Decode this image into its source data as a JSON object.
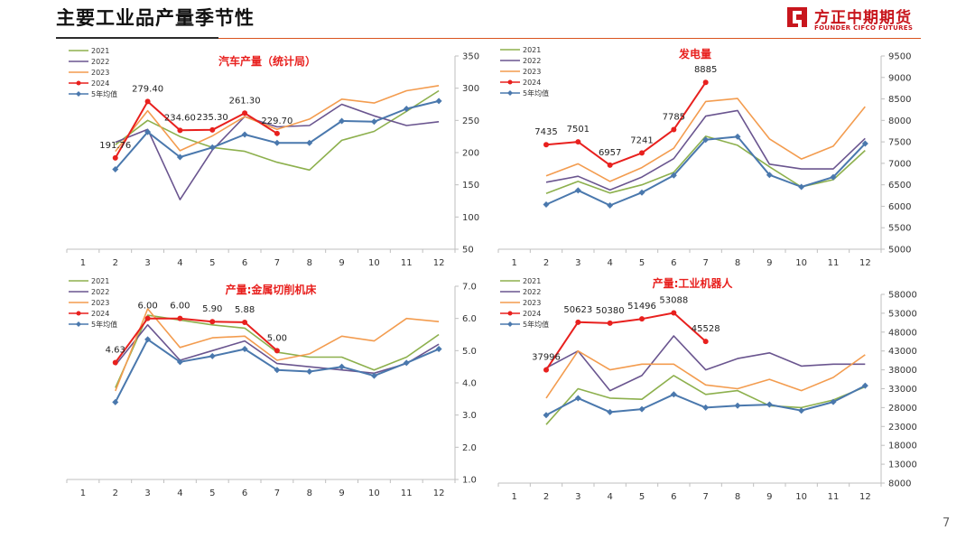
{
  "page": {
    "title": "主要工业品产量季节性",
    "page_number": "7",
    "logo": {
      "name_cn": "方正中期期货",
      "name_en": "FOUNDER CIFCO FUTURES"
    }
  },
  "colors": {
    "2021": "#8db04d",
    "2022": "#6a558f",
    "2023": "#f39c4f",
    "2024": "#e8201e",
    "5年均值": "#4a78ad",
    "title_red": "#e8201e",
    "brand_red": "#c8161d"
  },
  "chart_data": [
    {
      "type": "line",
      "title": "汽车产量（统计局）",
      "categories": [
        "1",
        "2",
        "3",
        "4",
        "5",
        "6",
        "7",
        "8",
        "9",
        "10",
        "11",
        "12"
      ],
      "ylim": [
        50,
        350
      ],
      "yticks": [
        "50",
        "100",
        "150",
        "200",
        "250",
        "300",
        "350"
      ],
      "y_axis_side": "right",
      "legend_position": "top-left",
      "series": [
        {
          "name": "2021",
          "values": [
            null,
            212,
            250,
            225,
            208,
            202,
            185,
            173,
            219,
            233,
            264,
            296
          ]
        },
        {
          "name": "2022",
          "values": [
            null,
            216,
            236,
            127,
            204,
            256,
            240,
            242,
            275,
            257,
            242,
            248
          ]
        },
        {
          "name": "2023",
          "values": [
            null,
            202,
            265,
            203,
            226,
            256,
            236,
            252,
            283,
            277,
            296,
            304
          ]
        },
        {
          "name": "2024",
          "values": [
            null,
            191.76,
            279.4,
            234.6,
            235.3,
            261.3,
            229.7,
            null,
            null,
            null,
            null,
            null
          ],
          "labels": [
            "",
            "191.76",
            "279.40",
            "234.60",
            "235.30",
            "261.30",
            "229.70",
            "",
            "",
            "",
            "",
            ""
          ]
        },
        {
          "name": "5年均值",
          "values": [
            null,
            174,
            232,
            193,
            208,
            228,
            215,
            215,
            249,
            248,
            268,
            280
          ]
        }
      ]
    },
    {
      "type": "line",
      "title": "发电量",
      "categories": [
        "1",
        "2",
        "3",
        "4",
        "5",
        "6",
        "7",
        "8",
        "9",
        "10",
        "11",
        "12"
      ],
      "ylim": [
        5000,
        9500
      ],
      "yticks": [
        "5000",
        "5500",
        "6000",
        "6500",
        "7000",
        "7500",
        "8000",
        "8500",
        "9000",
        "9500"
      ],
      "y_axis_side": "right",
      "legend_position": "top-left",
      "series": [
        {
          "name": "2021",
          "values": [
            null,
            6300,
            6580,
            6310,
            6500,
            6790,
            7630,
            7420,
            6920,
            6450,
            6620,
            7300
          ]
        },
        {
          "name": "2022",
          "values": [
            null,
            6560,
            6700,
            6380,
            6680,
            7110,
            8100,
            8230,
            6980,
            6870,
            6870,
            7580
          ]
        },
        {
          "name": "2023",
          "values": [
            null,
            6710,
            6990,
            6580,
            6900,
            7350,
            8440,
            8510,
            7570,
            7100,
            7400,
            8320
          ]
        },
        {
          "name": "2024",
          "values": [
            null,
            7435,
            7501,
            6957,
            7241,
            7785,
            8885,
            null,
            null,
            null,
            null,
            null
          ],
          "labels": [
            "",
            "7435",
            "7501",
            "6957",
            "7241",
            "7785",
            "8885",
            "",
            "",
            "",
            "",
            ""
          ]
        },
        {
          "name": "5年均值",
          "values": [
            null,
            6040,
            6370,
            6020,
            6320,
            6720,
            7550,
            7620,
            6730,
            6450,
            6680,
            7460
          ]
        }
      ]
    },
    {
      "type": "line",
      "title": "产量:金属切削机床",
      "categories": [
        "1",
        "2",
        "3",
        "4",
        "5",
        "6",
        "7",
        "8",
        "9",
        "10",
        "11",
        "12"
      ],
      "ylim": [
        1.0,
        7.0
      ],
      "yticks": [
        "1.0",
        "2.0",
        "3.0",
        "4.0",
        "5.0",
        "6.0",
        "7.0"
      ],
      "y_axis_side": "right",
      "legend_position": "top-left",
      "series": [
        {
          "name": "2021",
          "values": [
            null,
            3.85,
            6.1,
            5.95,
            5.8,
            5.7,
            4.95,
            4.8,
            4.8,
            4.4,
            4.8,
            5.5
          ]
        },
        {
          "name": "2022",
          "values": [
            null,
            4.55,
            5.8,
            4.7,
            5.0,
            5.3,
            4.6,
            4.5,
            4.4,
            4.3,
            4.6,
            5.2
          ]
        },
        {
          "name": "2023",
          "values": [
            null,
            3.75,
            6.3,
            5.1,
            5.4,
            5.45,
            4.7,
            4.9,
            5.45,
            5.3,
            6.0,
            5.9
          ]
        },
        {
          "name": "2024",
          "values": [
            null,
            4.63,
            6.0,
            6.0,
            5.9,
            5.88,
            5.0,
            null,
            null,
            null,
            null,
            null
          ],
          "labels": [
            "",
            "4.63",
            "6.00",
            "6.00",
            "5.90",
            "5.88",
            "5.00",
            "",
            "",
            "",
            "",
            ""
          ]
        },
        {
          "name": "5年均值",
          "values": [
            null,
            3.4,
            5.35,
            4.65,
            4.83,
            5.05,
            4.4,
            4.35,
            4.5,
            4.22,
            4.62,
            5.05
          ]
        }
      ]
    },
    {
      "type": "line",
      "title": "产量:工业机器人",
      "categories": [
        "1",
        "2",
        "3",
        "4",
        "5",
        "6",
        "7",
        "8",
        "9",
        "10",
        "11",
        "12"
      ],
      "ylim": [
        8000,
        58000
      ],
      "yticks": [
        "8000",
        "13000",
        "18000",
        "23000",
        "28000",
        "33000",
        "38000",
        "43000",
        "48000",
        "53000",
        "58000"
      ],
      "y_axis_side": "right",
      "legend_position": "top-left",
      "series": [
        {
          "name": "2021",
          "values": [
            null,
            23500,
            33000,
            30500,
            30200,
            36500,
            31500,
            32500,
            28500,
            28000,
            30000,
            33500
          ]
        },
        {
          "name": "2022",
          "values": [
            null,
            38500,
            43000,
            32500,
            36500,
            47000,
            38000,
            41000,
            42500,
            39000,
            39500,
            39500
          ]
        },
        {
          "name": "2023",
          "values": [
            null,
            30500,
            43000,
            38000,
            39500,
            39500,
            34000,
            33000,
            35500,
            32500,
            36000,
            42000
          ]
        },
        {
          "name": "2024",
          "values": [
            null,
            37996,
            50623,
            50380,
            51496,
            53088,
            45528,
            null,
            null,
            null,
            null,
            null
          ],
          "labels": [
            "",
            "37996",
            "50623",
            "50380",
            "51496",
            "53088",
            "45528",
            "",
            "",
            "",
            "",
            ""
          ]
        },
        {
          "name": "5年均值",
          "values": [
            null,
            26000,
            30500,
            26800,
            27600,
            31500,
            28000,
            28500,
            28800,
            27200,
            29500,
            33800
          ]
        }
      ]
    }
  ]
}
